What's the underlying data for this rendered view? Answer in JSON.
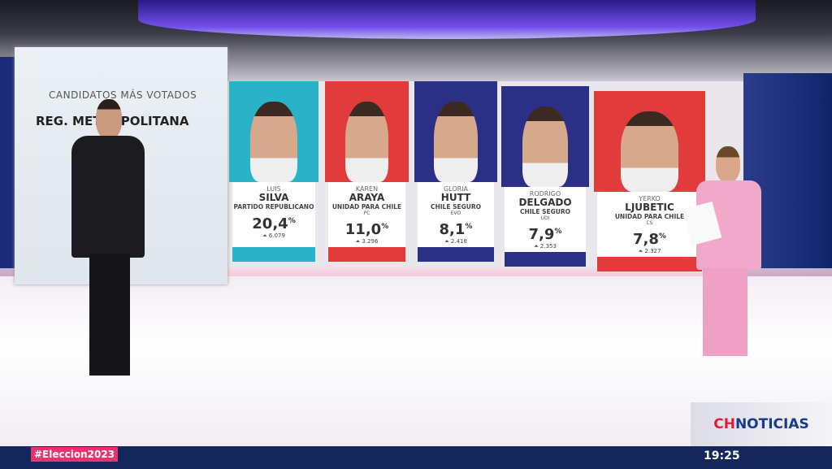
{
  "panel": {
    "subtitle": "CANDIDATOS MÁS VOTADOS",
    "title": "REG. METROPOLITANA"
  },
  "candidates": [
    {
      "first": "LUIS",
      "last": "SILVA",
      "party": "PARTIDO REPUBLICANO",
      "sub": "",
      "pct": "20,4",
      "votes": "6.079",
      "color": "#2ab3c6"
    },
    {
      "first": "KAREN",
      "last": "ARAYA",
      "party": "UNIDAD PARA CHILE",
      "sub": "PC",
      "pct": "11,0",
      "votes": "3.296",
      "color": "#e23b3b"
    },
    {
      "first": "GLORIA",
      "last": "HUTT",
      "party": "CHILE SEGURO",
      "sub": "EVO",
      "pct": "8,1",
      "votes": "2.418",
      "color": "#2b2f86"
    },
    {
      "first": "RODRIGO",
      "last": "DELGADO",
      "party": "CHILE SEGURO",
      "sub": "UDI",
      "pct": "7,9",
      "votes": "2.353",
      "color": "#2b2f86"
    },
    {
      "first": "YERKO",
      "last": "LJUBETIC",
      "party": "UNIDAD PARA CHILE",
      "sub": "CS",
      "pct": "7,8",
      "votes": "2.327",
      "color": "#e23b3b"
    }
  ],
  "percent_sign": "%",
  "ticker": {
    "hashtag": "#Eleccion2023",
    "time": "19:25"
  },
  "logo": {
    "c": "CH",
    "text": "NOTICIAS"
  }
}
